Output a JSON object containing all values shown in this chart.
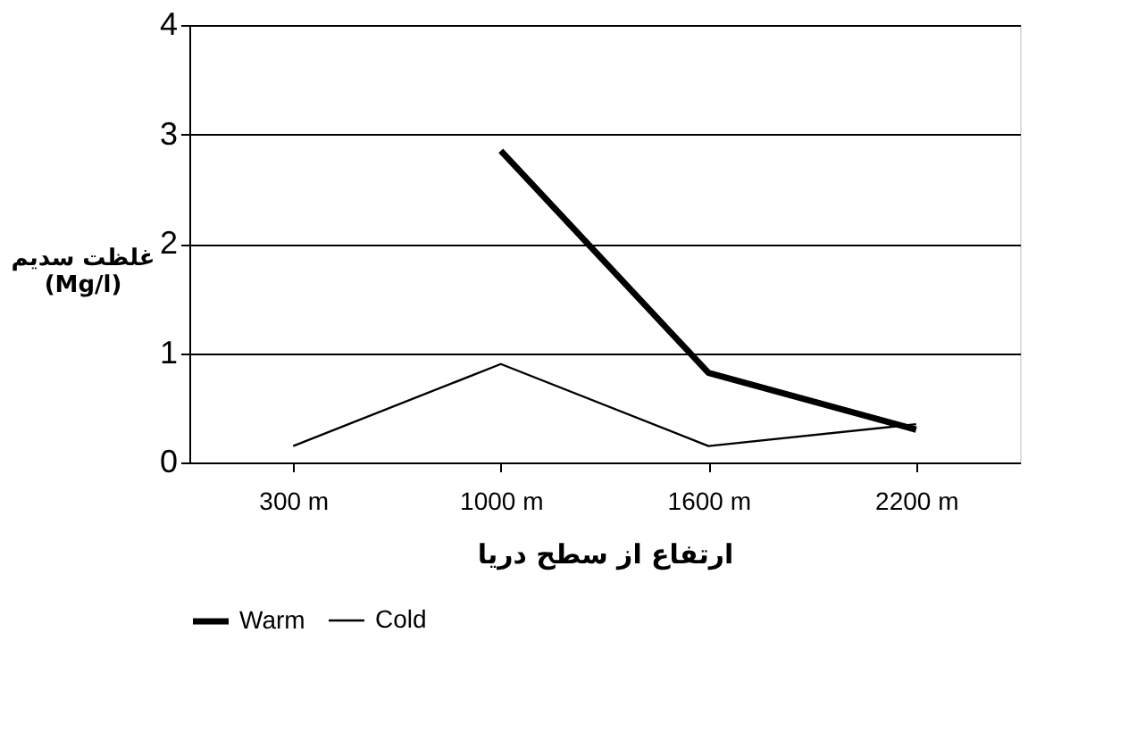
{
  "chart_data": {
    "type": "line",
    "xlabel": "ارتفاع از سطح دریا",
    "ylabel": "غلظت سدیم\n(Mg/l)",
    "categories": [
      "300 m",
      "1000 m",
      "1600 m",
      "2200 m"
    ],
    "series": [
      {
        "name": "Warm",
        "color": "#000000",
        "values": [
          null,
          2.85,
          0.82,
          0.3
        ]
      },
      {
        "name": "Cold",
        "color": "#000000",
        "values": [
          0.15,
          0.9,
          0.15,
          0.35
        ]
      }
    ],
    "ylim": [
      0,
      4
    ],
    "yticks": [
      0,
      1,
      2,
      3,
      4
    ],
    "grid": "y",
    "legend": "bottom",
    "marker": "none",
    "line_style": "solid"
  }
}
